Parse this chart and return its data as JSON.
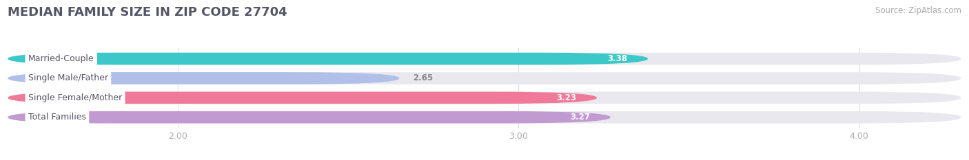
{
  "title": "MEDIAN FAMILY SIZE IN ZIP CODE 27704",
  "source": "Source: ZipAtlas.com",
  "categories": [
    "Married-Couple",
    "Single Male/Father",
    "Single Female/Mother",
    "Total Families"
  ],
  "values": [
    3.38,
    2.65,
    3.23,
    3.27
  ],
  "bar_colors": [
    "#3cc8c8",
    "#b0c0e8",
    "#f07898",
    "#c09ad0"
  ],
  "background_color": "#ffffff",
  "bar_bg_color": "#e8e8ee",
  "xlim_left": 1.5,
  "xlim_right": 4.3,
  "xticks": [
    2.0,
    3.0,
    4.0
  ],
  "xtick_labels": [
    "2.00",
    "3.00",
    "4.00"
  ],
  "bar_height": 0.62,
  "title_fontsize": 13,
  "source_fontsize": 8.5,
  "label_fontsize": 9,
  "value_fontsize": 8.5,
  "tick_fontsize": 9,
  "grid_color": "#ddddee",
  "tick_color": "#aaaaaa",
  "title_color": "#555566",
  "source_color": "#aaaaaa",
  "value_color_inside": "#ffffff",
  "value_color_outside": "#888888",
  "label_bg": "#ffffff",
  "label_text_color": "#555566"
}
